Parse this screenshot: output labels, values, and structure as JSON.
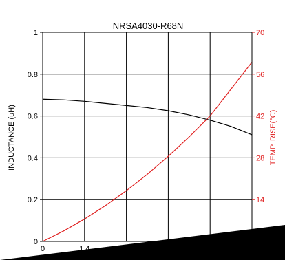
{
  "chart_data": {
    "type": "line",
    "title": "NRSA4030-R68N",
    "xlabel": "",
    "ylabel": "INDUCTANCE (uH)",
    "y2label": "TEMP. RISE(°C)",
    "xlim": [
      0,
      7
    ],
    "ylim": [
      0,
      1
    ],
    "y2lim": [
      0,
      70
    ],
    "x_ticks": [
      "0",
      "1.4"
    ],
    "y_ticks": [
      "0",
      "0.2",
      "0.4",
      "0.6",
      "0.8",
      "1"
    ],
    "y2_ticks": [
      "14",
      "28",
      "42",
      "56",
      "70"
    ],
    "grid": true,
    "colors": {
      "inductance": "#000000",
      "temp_rise": "#e02020",
      "grid": "#000000",
      "occluder": "#000000"
    },
    "series": [
      {
        "axis": "left",
        "color": "#000000",
        "x": [
          0,
          0.7,
          1.4,
          2.1,
          2.8,
          3.5,
          4.2,
          4.9,
          5.6,
          6.3,
          7.0
        ],
        "y": [
          0.68,
          0.677,
          0.67,
          0.66,
          0.65,
          0.64,
          0.625,
          0.605,
          0.58,
          0.55,
          0.51
        ]
      },
      {
        "axis": "right",
        "color": "#e02020",
        "x": [
          0,
          0.7,
          1.4,
          2.1,
          2.8,
          3.5,
          4.2,
          4.9,
          5.6,
          6.3,
          7.0
        ],
        "y": [
          0,
          3.5,
          7.5,
          12,
          17,
          22.5,
          28.5,
          35,
          42,
          51,
          60
        ]
      }
    ]
  }
}
